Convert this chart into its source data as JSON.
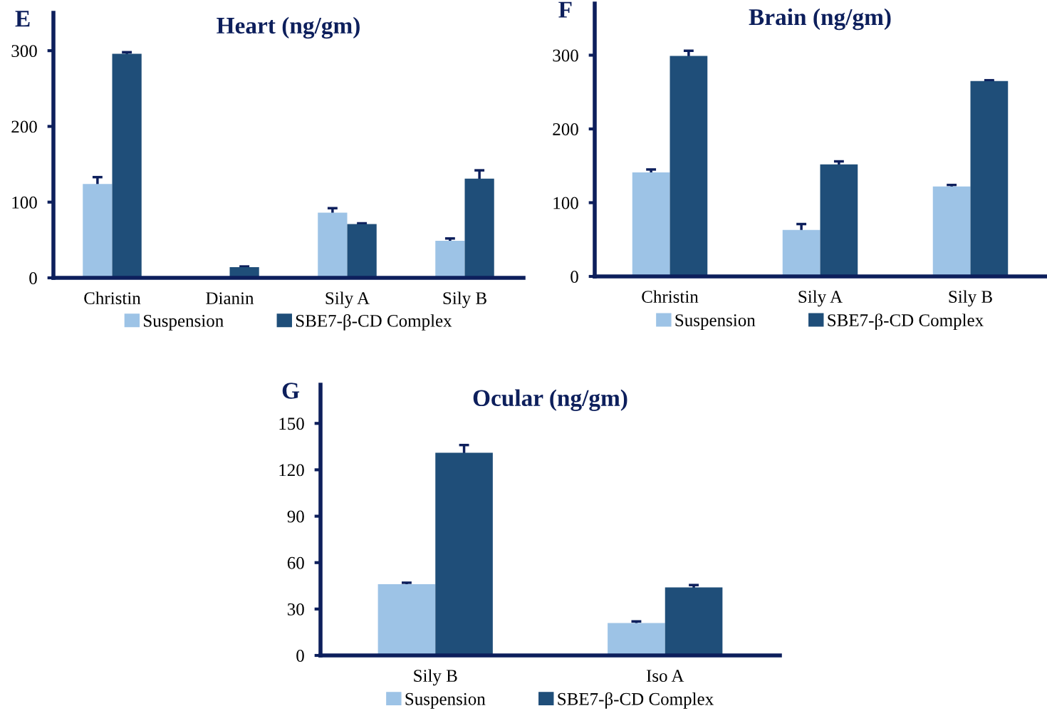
{
  "chart_data": [
    {
      "type": "bar",
      "title": "Heart (ng/gm)",
      "annotations": [
        "E"
      ],
      "categories": [
        "Christin",
        "Dianin",
        "Sily A",
        "Sily B"
      ],
      "series": [
        {
          "name": "Suspension",
          "color": "#9dc3e6",
          "values": [
            124,
            null,
            86,
            49
          ],
          "errors": [
            9,
            null,
            6,
            3
          ]
        },
        {
          "name": "SBE7-β-CD Complex",
          "color": "#1f4e79",
          "values": [
            296,
            14,
            71,
            131
          ],
          "errors": [
            2,
            1,
            1,
            11
          ]
        }
      ],
      "ylim": [
        0,
        350
      ],
      "yticks": [
        0,
        100,
        200,
        300
      ],
      "grid": false,
      "legend": "bottom"
    },
    {
      "type": "bar",
      "title": "Brain (ng/gm)",
      "annotations": [
        "F"
      ],
      "categories": [
        "Christin",
        "Sily A",
        "Sily B"
      ],
      "series": [
        {
          "name": "Suspension",
          "color": "#9dc3e6",
          "values": [
            141,
            63,
            122
          ],
          "errors": [
            4,
            8,
            2
          ]
        },
        {
          "name": "SBE7-β-CD Complex",
          "color": "#1f4e79",
          "values": [
            299,
            152,
            265
          ],
          "errors": [
            7,
            4,
            1
          ]
        }
      ],
      "ylim": [
        0,
        370
      ],
      "yticks": [
        0,
        100,
        200,
        300
      ],
      "grid": false,
      "legend": "bottom"
    },
    {
      "type": "bar",
      "title": "Ocular (ng/gm)",
      "annotations": [
        "G"
      ],
      "categories": [
        "Sily B",
        "Iso A"
      ],
      "series": [
        {
          "name": "Suspension",
          "color": "#9dc3e6",
          "values": [
            46,
            21
          ],
          "errors": [
            1,
            1
          ]
        },
        {
          "name": "SBE7-β-CD Complex",
          "color": "#1f4e79",
          "values": [
            131,
            44
          ],
          "errors": [
            5,
            1.5
          ]
        }
      ],
      "ylim": [
        0,
        175
      ],
      "yticks": [
        0,
        30,
        60,
        90,
        120,
        150
      ],
      "grid": false,
      "legend": "bottom"
    }
  ]
}
